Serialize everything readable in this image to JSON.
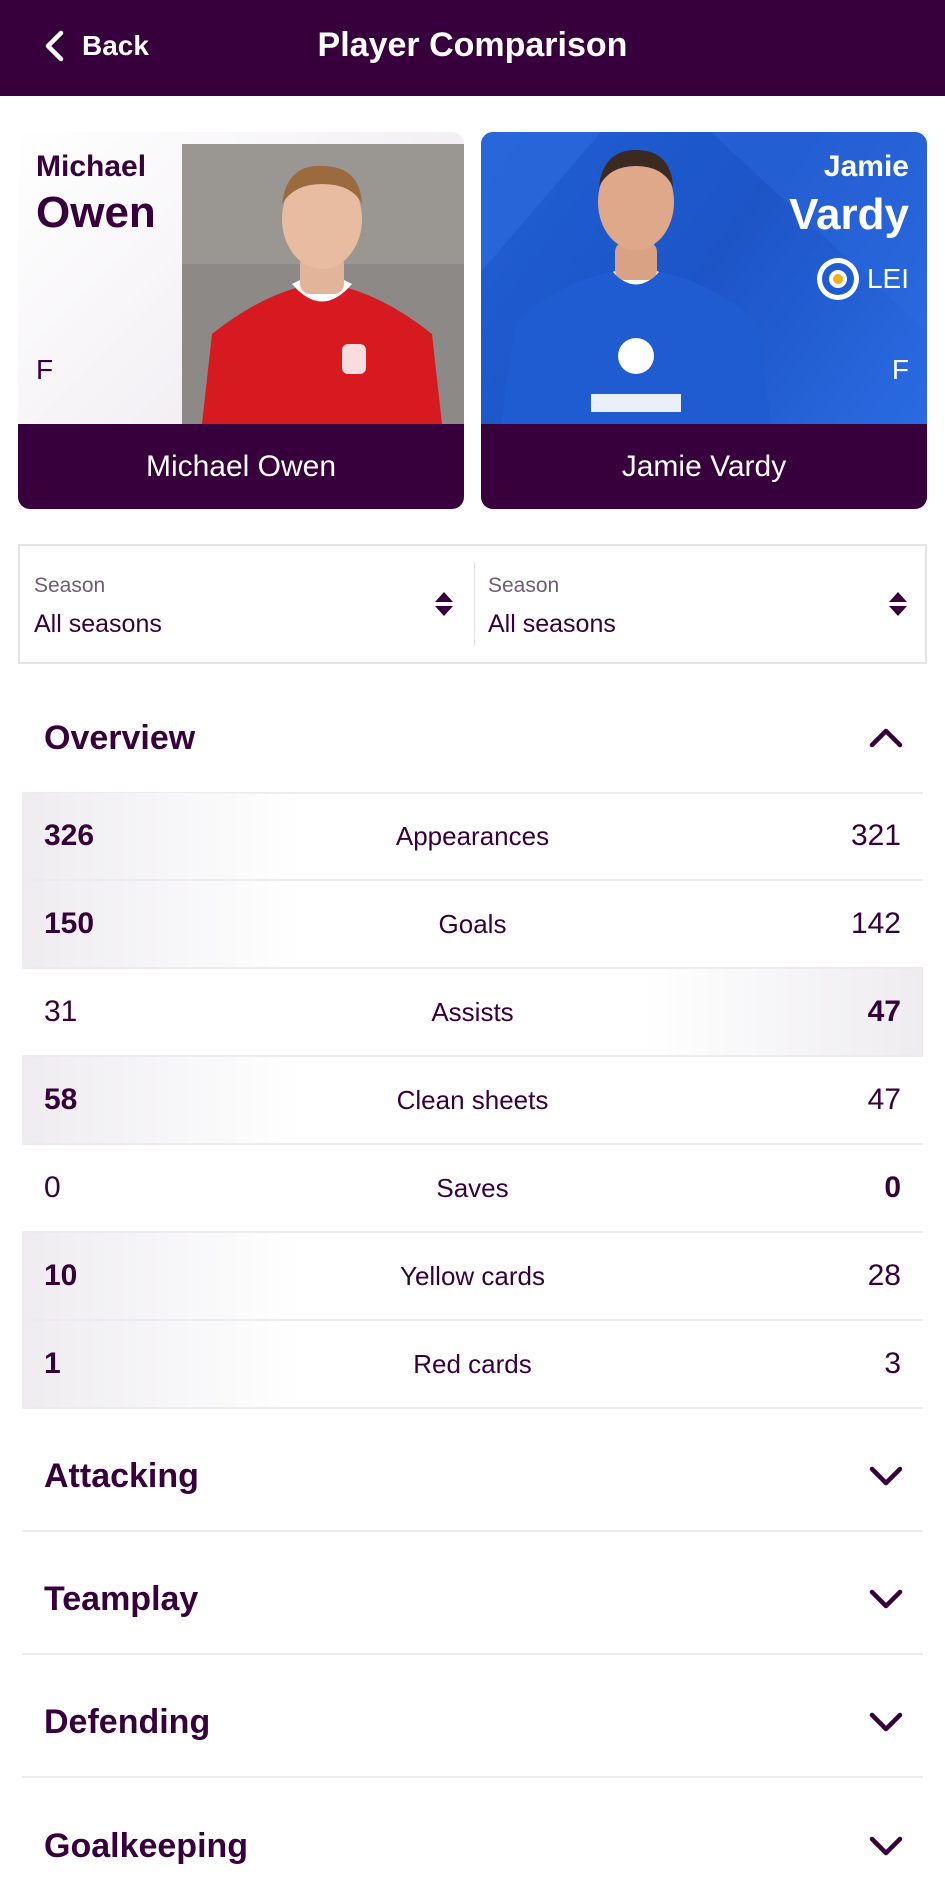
{
  "header": {
    "back_label": "Back",
    "title": "Player Comparison"
  },
  "players": {
    "left": {
      "first_name": "Michael",
      "last_name": "Owen",
      "position": "F",
      "full_name": "Michael Owen",
      "shirt_color": "#d71920"
    },
    "right": {
      "first_name": "Jamie",
      "last_name": "Vardy",
      "position": "F",
      "club_code": "LEI",
      "full_name": "Jamie Vardy",
      "shirt_color": "#1f5bd1"
    }
  },
  "season": {
    "left": {
      "label": "Season",
      "value": "All seasons"
    },
    "right": {
      "label": "Season",
      "value": "All seasons"
    }
  },
  "sections": {
    "overview": "Overview",
    "attacking": "Attacking",
    "teamplay": "Teamplay",
    "defending": "Defending",
    "goalkeeping": "Goalkeeping"
  },
  "overview_stats": [
    {
      "label": "Appearances",
      "left": "326",
      "right": "321",
      "leader": "left"
    },
    {
      "label": "Goals",
      "left": "150",
      "right": "142",
      "leader": "left"
    },
    {
      "label": "Assists",
      "left": "31",
      "right": "47",
      "leader": "right"
    },
    {
      "label": "Clean sheets",
      "left": "58",
      "right": "47",
      "leader": "left"
    },
    {
      "label": "Saves",
      "left": "0",
      "right": "0",
      "leader": "right"
    },
    {
      "label": "Yellow cards",
      "left": "10",
      "right": "28",
      "leader": "left"
    },
    {
      "label": "Red cards",
      "left": "1",
      "right": "3",
      "leader": "left"
    }
  ],
  "colors": {
    "brand": "#37003c",
    "divider": "#eeeaef"
  }
}
